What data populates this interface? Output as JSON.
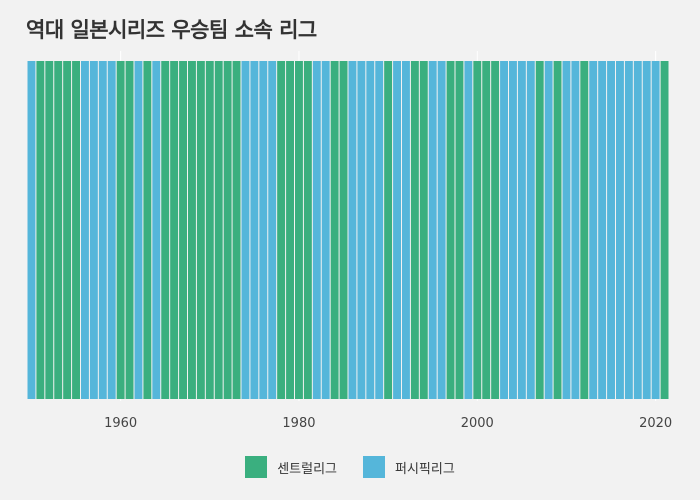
{
  "title": "역대 일본시리즈 우승팀 소속 리그",
  "colors": {
    "central": "#3aaf7f",
    "pacific": "#55b6da",
    "background": "#f2f2f2",
    "grid": "#ffffff"
  },
  "legend": [
    {
      "key": "C",
      "label": "센트럴리그",
      "color": "#3aaf7f"
    },
    {
      "key": "P",
      "label": "퍼시픽리그",
      "color": "#55b6da"
    }
  ],
  "chart_data": {
    "type": "bar",
    "title": "역대 일본시리즈 우승팀 소속 리그",
    "xlabel": "",
    "ylabel": "",
    "x_ticks": [
      "1960",
      "1980",
      "2000",
      "2020"
    ],
    "xlim": [
      1949.5,
      2021.5
    ],
    "legend_position": "bottom",
    "series": [
      {
        "name": "센트럴리그",
        "key": "C"
      },
      {
        "name": "퍼시픽리그",
        "key": "P"
      }
    ],
    "categories": [
      1950,
      1951,
      1952,
      1953,
      1954,
      1955,
      1956,
      1957,
      1958,
      1959,
      1960,
      1961,
      1962,
      1963,
      1964,
      1965,
      1966,
      1967,
      1968,
      1969,
      1970,
      1971,
      1972,
      1973,
      1974,
      1975,
      1976,
      1977,
      1978,
      1979,
      1980,
      1981,
      1982,
      1983,
      1984,
      1985,
      1986,
      1987,
      1988,
      1989,
      1990,
      1991,
      1992,
      1993,
      1994,
      1995,
      1996,
      1997,
      1998,
      1999,
      2000,
      2001,
      2002,
      2003,
      2004,
      2005,
      2006,
      2007,
      2008,
      2009,
      2010,
      2011,
      2012,
      2013,
      2014,
      2015,
      2016,
      2017,
      2018,
      2019,
      2020,
      2021
    ],
    "values": [
      "P",
      "C",
      "C",
      "C",
      "C",
      "C",
      "P",
      "P",
      "P",
      "P",
      "C",
      "C",
      "P",
      "C",
      "P",
      "C",
      "C",
      "C",
      "C",
      "C",
      "C",
      "C",
      "C",
      "C",
      "P",
      "P",
      "P",
      "P",
      "C",
      "C",
      "C",
      "C",
      "P",
      "P",
      "C",
      "C",
      "P",
      "P",
      "P",
      "P",
      "C",
      "P",
      "P",
      "C",
      "C",
      "P",
      "P",
      "C",
      "C",
      "P",
      "C",
      "C",
      "C",
      "P",
      "P",
      "P",
      "P",
      "C",
      "P",
      "C",
      "P",
      "P",
      "C",
      "P",
      "P",
      "P",
      "P",
      "P",
      "P",
      "P",
      "P",
      "C"
    ]
  }
}
